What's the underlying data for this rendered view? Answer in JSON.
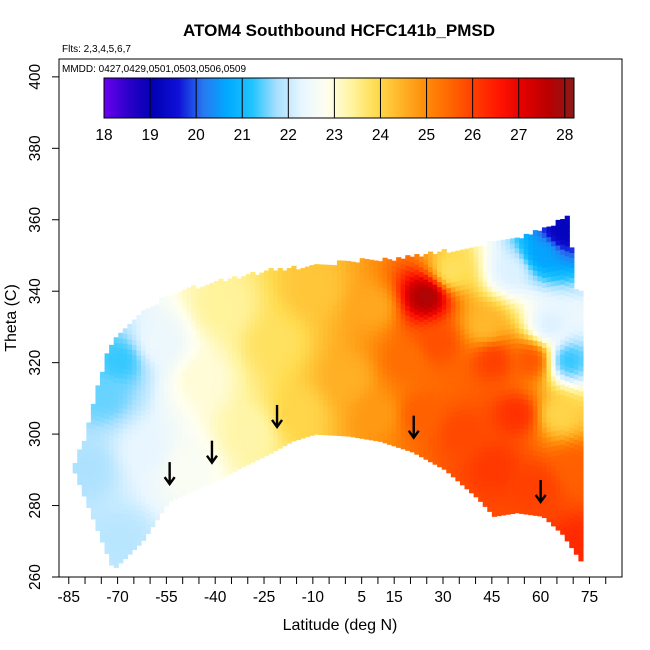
{
  "chart_data": {
    "type": "heatmap",
    "title": "ATOM4 Southbound HCFC141b_PMSD",
    "flights_note": "Flts: 2,3,4,5,6,7",
    "dates_note": "MMDD: 0427,0429,0501,0503,0506,0509",
    "xlabel": "Latitude (deg N)",
    "ylabel": "Theta (C)",
    "xlim": [
      -88,
      85
    ],
    "ylim": [
      260,
      405
    ],
    "x_ticks": [
      -85,
      -70,
      -55,
      -40,
      -25,
      -10,
      5,
      15,
      30,
      45,
      60,
      75
    ],
    "x_minor_ticks": [
      -80,
      -75,
      -65,
      -60,
      -50,
      -45,
      -35,
      -30,
      -20,
      -15,
      -5,
      0,
      10,
      20,
      25,
      35,
      40,
      50,
      55,
      65,
      70,
      80
    ],
    "y_ticks": [
      260,
      280,
      300,
      320,
      340,
      360,
      380,
      400
    ],
    "colorbar": {
      "min": 18,
      "max": 28.2,
      "tick_values": [
        18,
        19,
        20,
        21,
        22,
        23,
        24,
        25,
        26,
        27,
        28
      ],
      "tick_labels": [
        "18",
        "19",
        "20",
        "21",
        "22",
        "23",
        "24",
        "25",
        "26",
        "27",
        "28"
      ],
      "colors": [
        "#6a00f0",
        "#2a00c8",
        "#0000b4",
        "#1010d8",
        "#2878f0",
        "#00aaff",
        "#22c4ff",
        "#a8e0ff",
        "#e8f6ff",
        "#fffff0",
        "#fff4a0",
        "#ffdc50",
        "#ffb428",
        "#ff8c0a",
        "#ff6600",
        "#ff3c00",
        "#ff1400",
        "#e00000",
        "#b80000",
        "#8c1a1a"
      ]
    },
    "boundary_lower": [
      [
        -72,
        262
      ],
      [
        -63,
        270
      ],
      [
        -55,
        281
      ],
      [
        -48,
        284
      ],
      [
        -40,
        287
      ],
      [
        -32,
        291
      ],
      [
        -25,
        294
      ],
      [
        -17,
        298
      ],
      [
        -10,
        300
      ],
      [
        0,
        299.5
      ],
      [
        10,
        298
      ],
      [
        20,
        295
      ],
      [
        30,
        290
      ],
      [
        40,
        282
      ],
      [
        45,
        277
      ],
      [
        52,
        278
      ],
      [
        60,
        277
      ],
      [
        66,
        272
      ],
      [
        72,
        264
      ]
    ],
    "boundary_upper": [
      [
        -88,
        283
      ],
      [
        -85,
        288
      ],
      [
        -81,
        298
      ],
      [
        -76,
        315
      ],
      [
        -74,
        322
      ],
      [
        -70,
        328
      ],
      [
        -63,
        334
      ],
      [
        -55,
        338
      ],
      [
        -45,
        341
      ],
      [
        -35,
        343
      ],
      [
        -25,
        345
      ],
      [
        -15,
        346
      ],
      [
        -5,
        347
      ],
      [
        5,
        348
      ],
      [
        15,
        348.5
      ],
      [
        25,
        350
      ],
      [
        35,
        351
      ],
      [
        45,
        353
      ],
      [
        55,
        355
      ],
      [
        63,
        358
      ],
      [
        68,
        360
      ],
      [
        70,
        340
      ],
      [
        72,
        310
      ],
      [
        72,
        290
      ],
      [
        72,
        275
      ],
      [
        72,
        264
      ]
    ],
    "field_points": [
      {
        "lat": -80,
        "theta": 290,
        "value": 21.8
      },
      {
        "lat": -75,
        "theta": 310,
        "value": 21.5
      },
      {
        "lat": -70,
        "theta": 270,
        "value": 21.9
      },
      {
        "lat": -70,
        "theta": 320,
        "value": 21.3
      },
      {
        "lat": -62,
        "theta": 295,
        "value": 22.3
      },
      {
        "lat": -58,
        "theta": 325,
        "value": 22.4
      },
      {
        "lat": -50,
        "theta": 290,
        "value": 22.7
      },
      {
        "lat": -45,
        "theta": 315,
        "value": 23.0
      },
      {
        "lat": -38,
        "theta": 335,
        "value": 23.4
      },
      {
        "lat": -30,
        "theta": 300,
        "value": 23.3
      },
      {
        "lat": -22,
        "theta": 325,
        "value": 23.8
      },
      {
        "lat": -15,
        "theta": 305,
        "value": 24.0
      },
      {
        "lat": -10,
        "theta": 340,
        "value": 24.2
      },
      {
        "lat": 0,
        "theta": 315,
        "value": 24.5
      },
      {
        "lat": 8,
        "theta": 335,
        "value": 24.6
      },
      {
        "lat": 10,
        "theta": 305,
        "value": 24.8
      },
      {
        "lat": 18,
        "theta": 320,
        "value": 25.4
      },
      {
        "lat": 22,
        "theta": 305,
        "value": 25.6
      },
      {
        "lat": 24,
        "theta": 338,
        "value": 27.8
      },
      {
        "lat": 28,
        "theta": 325,
        "value": 25.8
      },
      {
        "lat": 32,
        "theta": 345,
        "value": 23.8
      },
      {
        "lat": 35,
        "theta": 300,
        "value": 25.9
      },
      {
        "lat": 42,
        "theta": 330,
        "value": 24.4
      },
      {
        "lat": 45,
        "theta": 320,
        "value": 26.0
      },
      {
        "lat": 45,
        "theta": 290,
        "value": 26.1
      },
      {
        "lat": 50,
        "theta": 345,
        "value": 22.2
      },
      {
        "lat": 52,
        "theta": 305,
        "value": 26.2
      },
      {
        "lat": 56,
        "theta": 320,
        "value": 25.7
      },
      {
        "lat": 58,
        "theta": 285,
        "value": 26.0
      },
      {
        "lat": 60,
        "theta": 350,
        "value": 20.6
      },
      {
        "lat": 62,
        "theta": 330,
        "value": 22.2
      },
      {
        "lat": 65,
        "theta": 305,
        "value": 24.0
      },
      {
        "lat": 66,
        "theta": 356,
        "value": 19.2
      },
      {
        "lat": 68,
        "theta": 320,
        "value": 21.3
      },
      {
        "lat": 70,
        "theta": 290,
        "value": 25.6
      },
      {
        "lat": 71,
        "theta": 268,
        "value": 26.3
      }
    ],
    "arrows": [
      {
        "lat": -54,
        "theta": 286
      },
      {
        "lat": -41,
        "theta": 292
      },
      {
        "lat": -21,
        "theta": 302
      },
      {
        "lat": 21,
        "theta": 299
      },
      {
        "lat": 60,
        "theta": 281
      }
    ]
  }
}
